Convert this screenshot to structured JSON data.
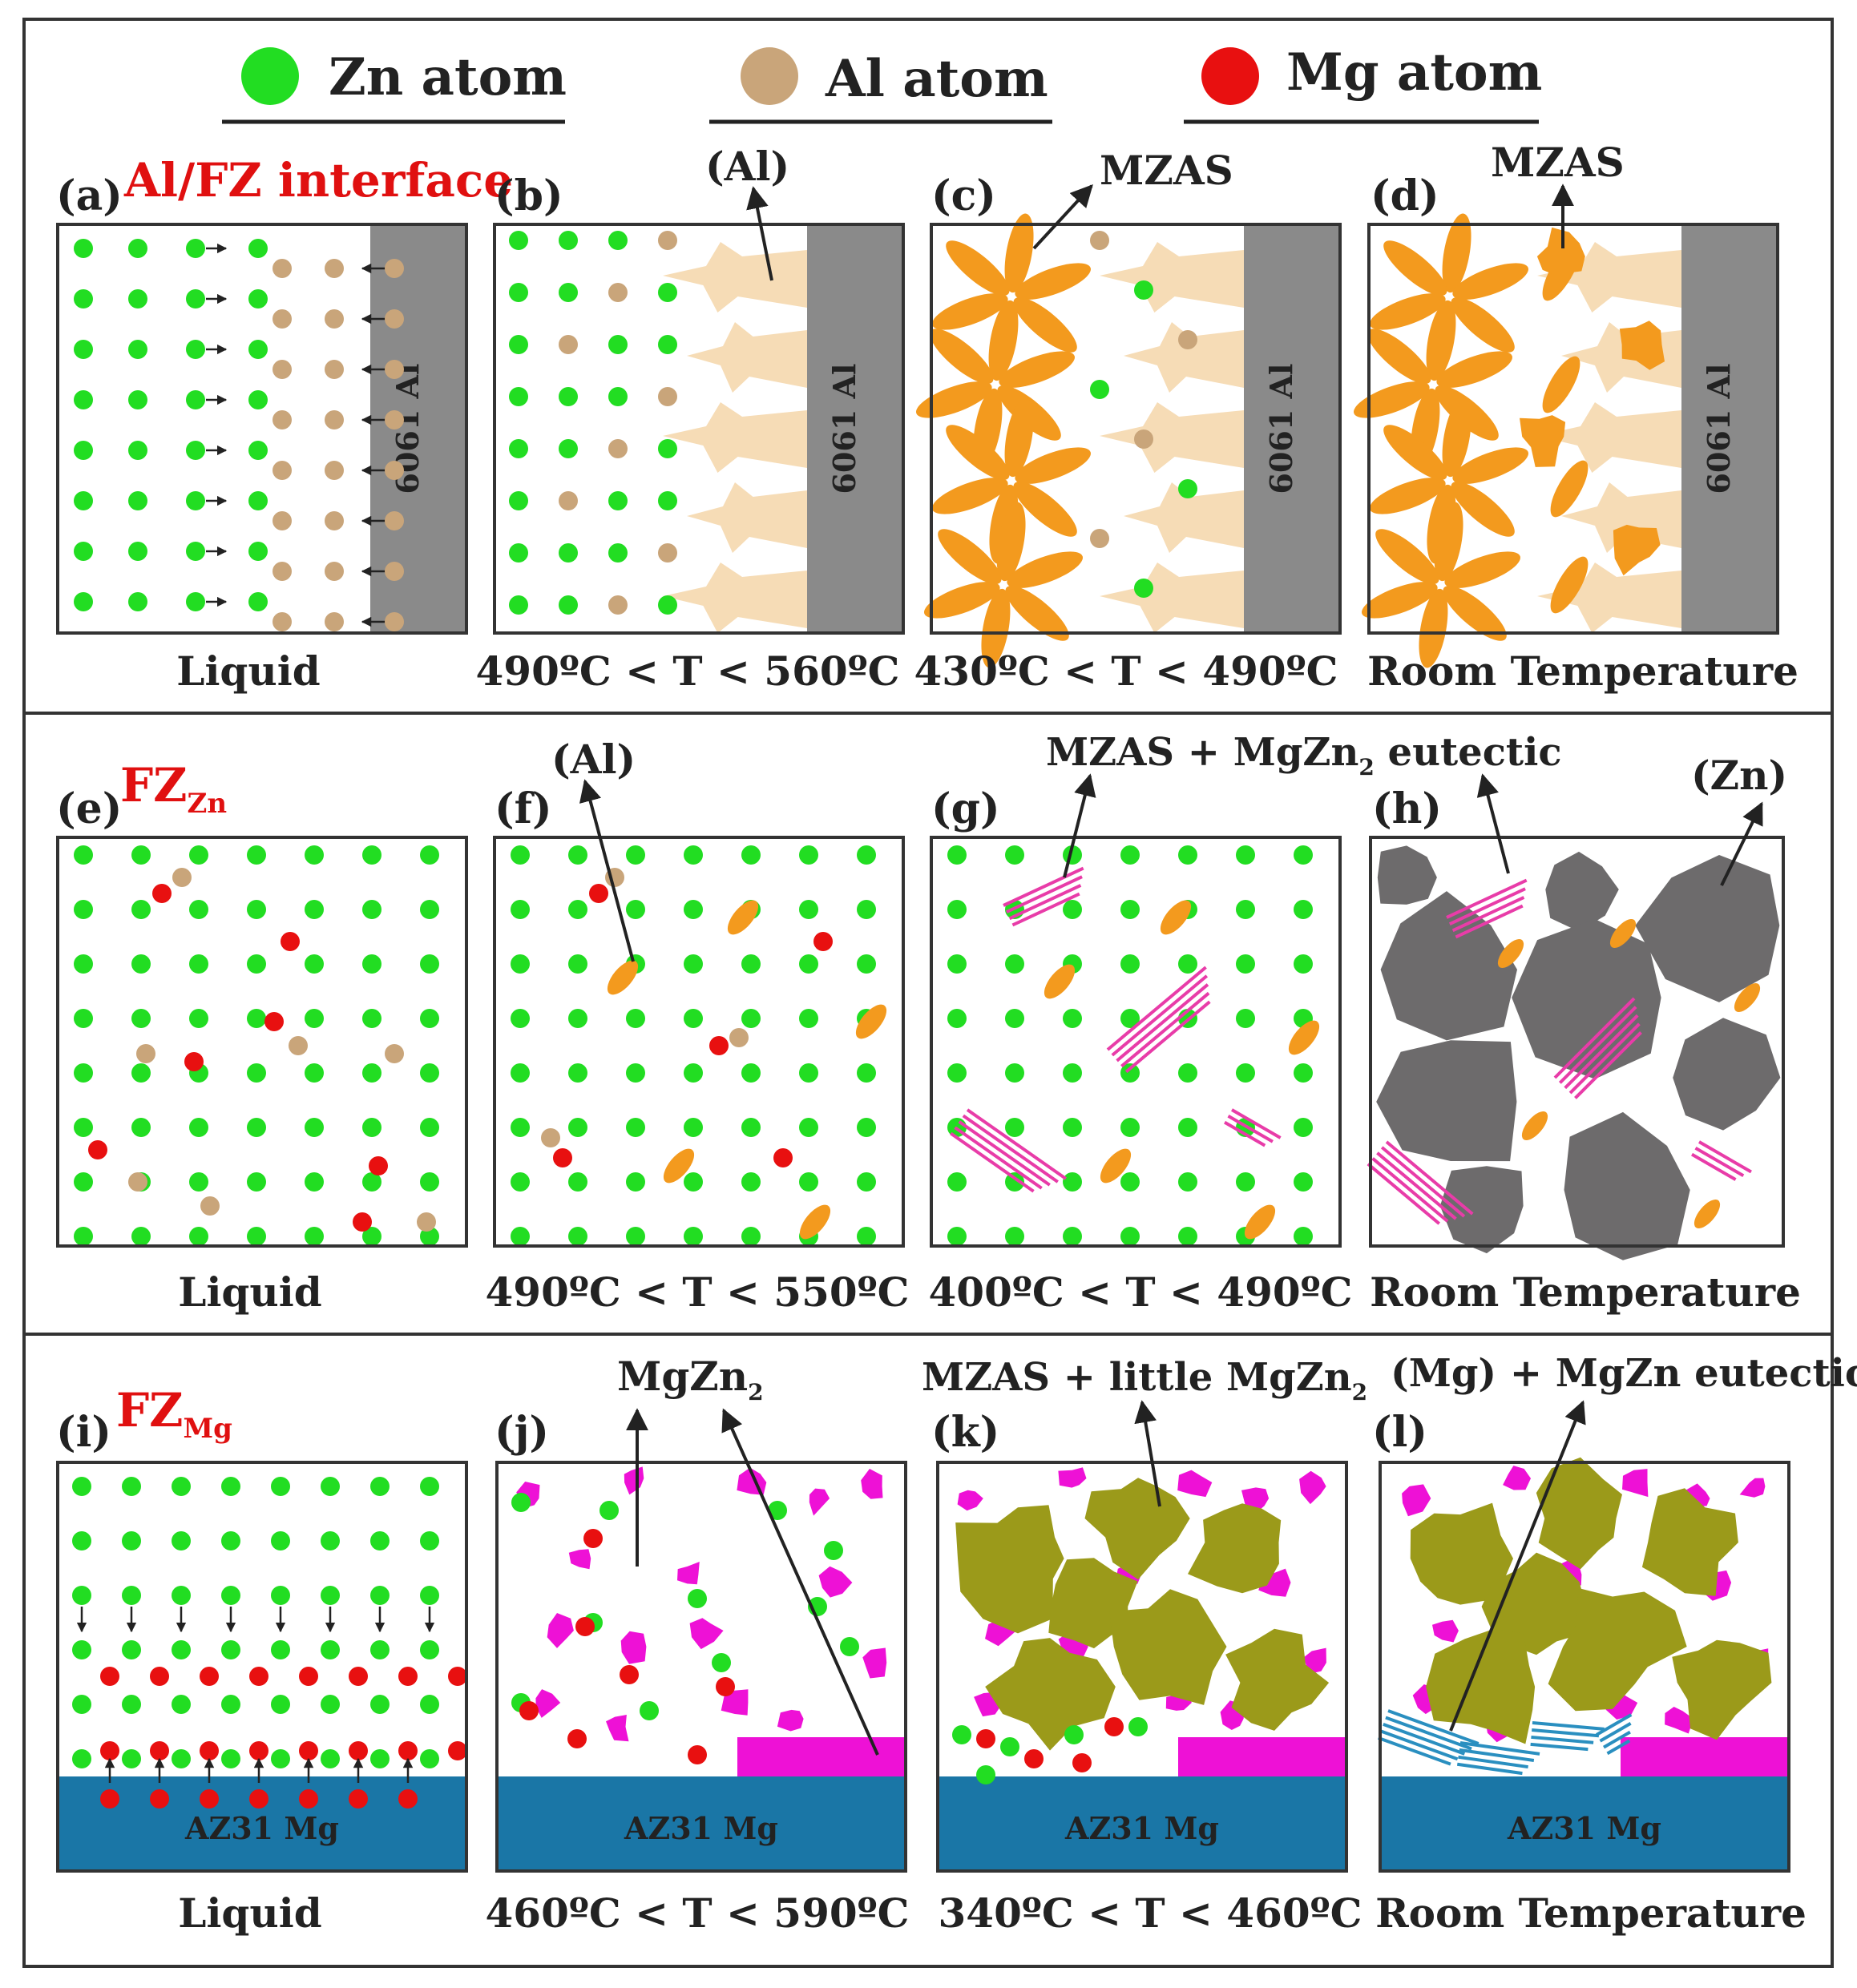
{
  "legend": [
    {
      "name": "zn",
      "label": "Zn atom",
      "color": "#22dd22"
    },
    {
      "name": "al",
      "label": "Al atom",
      "color": "#c9a57a"
    },
    {
      "name": "mg",
      "label": "Mg atom",
      "color": "#e81010"
    }
  ],
  "colors": {
    "zinc_grain": "#6d6b6c",
    "substrate_al": "#8a8a8a",
    "substrate_mg": "#1a76a6",
    "mzas": "#f39a1e",
    "al_dendrite": "#f6dcb6",
    "mgzn2": "#ee11d6",
    "mg_grain": "#9b9a1a",
    "eutectic_line": "#2a8fc0",
    "pink_line": "#e83ca8"
  },
  "rows": [
    {
      "heading": "Al/FZ interface",
      "panels": [
        {
          "tag": "(a)",
          "caption": "Liquid",
          "substrate": "6061 Al"
        },
        {
          "tag": "(b)",
          "caption": "490ºC < T < 560ºC",
          "substrate": "6061 Al",
          "callouts": [
            "(Al)"
          ]
        },
        {
          "tag": "(c)",
          "caption": "430ºC < T < 490ºC",
          "substrate": "6061 Al",
          "callouts": [
            "MZAS"
          ]
        },
        {
          "tag": "(d)",
          "caption": "Room Temperature",
          "substrate": "6061 Al",
          "callouts": [
            "MZAS"
          ]
        }
      ]
    },
    {
      "heading": "FZ",
      "heading_sub": "Zn",
      "panels": [
        {
          "tag": "(e)",
          "caption": "Liquid"
        },
        {
          "tag": "(f)",
          "caption": "490ºC < T < 550ºC",
          "callouts": [
            "(Al)"
          ]
        },
        {
          "tag": "(g)",
          "caption": "400ºC < T < 490ºC",
          "callouts": [
            "MZAS + MgZn",
            "2",
            " eutectic"
          ]
        },
        {
          "tag": "(h)",
          "caption": "Room Temperature",
          "callouts": [
            "(Zn)"
          ]
        }
      ]
    },
    {
      "heading": "FZ",
      "heading_sub": "Mg",
      "panels": [
        {
          "tag": "(i)",
          "caption": "Liquid",
          "substrate": "AZ31 Mg"
        },
        {
          "tag": "(j)",
          "caption": "460ºC < T < 590ºC",
          "substrate": "AZ31 Mg",
          "callouts": [
            "MgZn",
            "2"
          ]
        },
        {
          "tag": "(k)",
          "caption": "340ºC < T < 460ºC",
          "substrate": "AZ31 Mg",
          "callouts": [
            "MZAS + little MgZn",
            "2"
          ]
        },
        {
          "tag": "(l)",
          "caption": "Room Temperature",
          "substrate": "AZ31 Mg",
          "callouts": [
            "(Mg) + MgZn eutectic"
          ]
        }
      ]
    }
  ]
}
